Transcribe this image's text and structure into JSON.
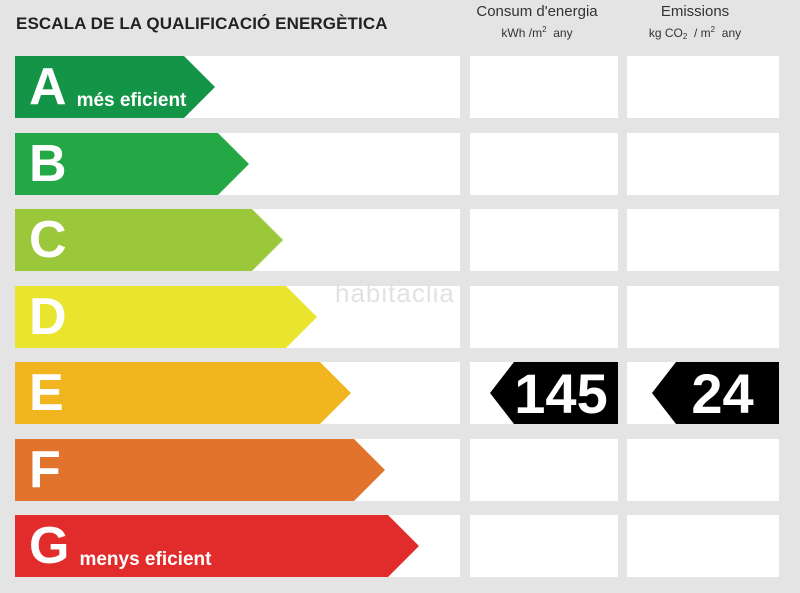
{
  "title": "ESCALA DE LA QUALIFICACIÓ ENERGÈTICA",
  "columns": {
    "consumption": {
      "title": "Consum d'energia",
      "unit_prefix": "kWh /m",
      "unit_exp": "2",
      "unit_suffix": "any"
    },
    "emissions": {
      "title": "Emissions",
      "unit_prefix": "kg CO",
      "unit_sub": "2",
      "unit_mid": "/ m",
      "unit_exp": "2",
      "unit_suffix": "any"
    }
  },
  "ratings": [
    {
      "letter": "A",
      "label": "més eficient",
      "color": "#149447"
    },
    {
      "letter": "B",
      "label": "",
      "color": "#24a846"
    },
    {
      "letter": "C",
      "label": "",
      "color": "#9bc83b"
    },
    {
      "letter": "D",
      "label": "",
      "color": "#e9e42d"
    },
    {
      "letter": "E",
      "label": "",
      "color": "#f0b51f"
    },
    {
      "letter": "F",
      "label": "",
      "color": "#e1732c"
    },
    {
      "letter": "G",
      "label": "menys eficient",
      "color": "#e22b2b"
    }
  ],
  "current": {
    "rating": "E",
    "consumption_value": "145",
    "emissions_value": "24"
  },
  "watermark": "habitaclia"
}
